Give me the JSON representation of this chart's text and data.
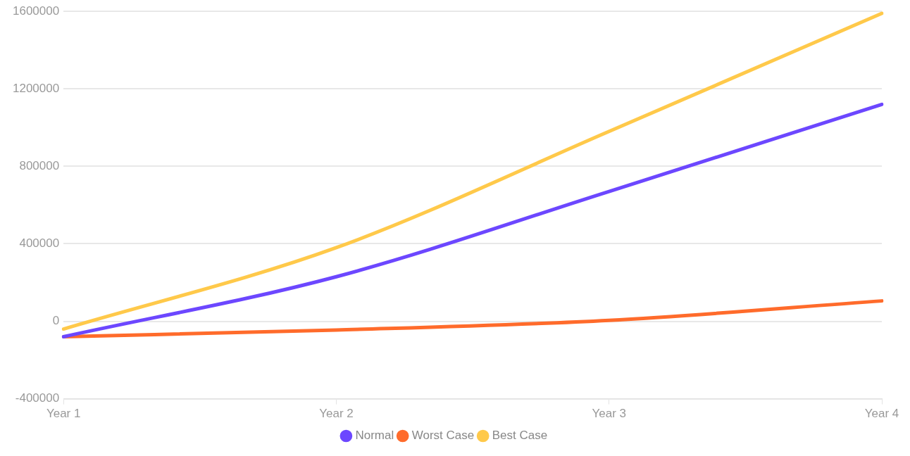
{
  "chart_data": {
    "type": "line",
    "categories": [
      "Year 1",
      "Year 2",
      "Year 3",
      "Year 4"
    ],
    "series": [
      {
        "name": "Normal",
        "color": "#6c47ff",
        "values": [
          -80000,
          230000,
          670000,
          1120000
        ]
      },
      {
        "name": "Worst Case",
        "color": "#ff6b2b",
        "values": [
          -80000,
          -45000,
          5000,
          105000
        ]
      },
      {
        "name": "Best Case",
        "color": "#ffc94a",
        "values": [
          -40000,
          380000,
          980000,
          1590000
        ]
      }
    ],
    "ylim": [
      -400000,
      1600000
    ],
    "yticks": [
      -400000,
      0,
      400000,
      800000,
      1200000,
      1600000
    ],
    "grid": "y",
    "legend": "bottom",
    "marker": "none",
    "line_style": "solid"
  }
}
